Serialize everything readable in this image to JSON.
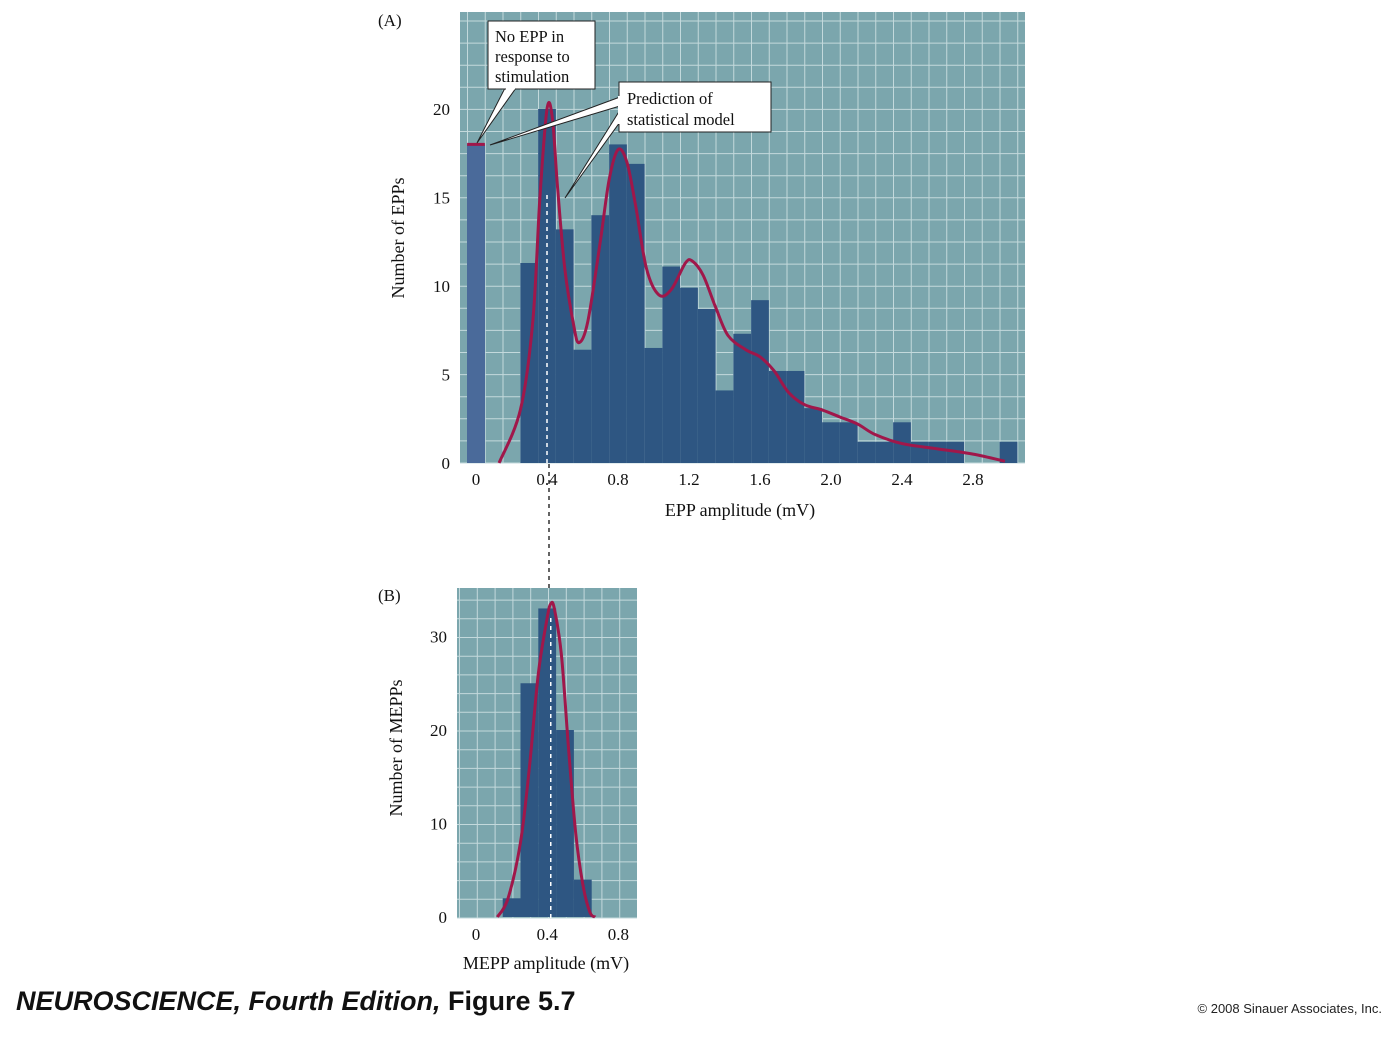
{
  "chart_data": [
    {
      "panel_label": "(A)",
      "type": "bar",
      "xlabel": "EPP amplitude (mV)",
      "ylabel": "Number of  EPPs",
      "xlim": [
        -0.1,
        3.05
      ],
      "ylim": [
        0,
        25.5
      ],
      "x_ticks": [
        "0",
        "0.4",
        "0.8",
        "1.2",
        "1.6",
        "2.0",
        "2.4",
        "2.8"
      ],
      "x_tick_values": [
        0,
        0.4,
        0.8,
        1.2,
        1.6,
        2.0,
        2.4,
        2.8
      ],
      "y_ticks": [
        "0",
        "5",
        "10",
        "15",
        "20"
      ],
      "y_tick_values": [
        0,
        5,
        10,
        15,
        20
      ],
      "bin_width": 0.1,
      "failures_bar": {
        "x": 0,
        "value": 18
      },
      "bars": [
        {
          "x": 0.3,
          "value": 11.3
        },
        {
          "x": 0.4,
          "value": 20
        },
        {
          "x": 0.5,
          "value": 13.2
        },
        {
          "x": 0.6,
          "value": 6.4
        },
        {
          "x": 0.7,
          "value": 14
        },
        {
          "x": 0.8,
          "value": 18
        },
        {
          "x": 0.9,
          "value": 16.9
        },
        {
          "x": 1.0,
          "value": 6.5
        },
        {
          "x": 1.1,
          "value": 11.1
        },
        {
          "x": 1.2,
          "value": 9.9
        },
        {
          "x": 1.3,
          "value": 8.7
        },
        {
          "x": 1.4,
          "value": 4.1
        },
        {
          "x": 1.5,
          "value": 7.3
        },
        {
          "x": 1.6,
          "value": 9.2
        },
        {
          "x": 1.7,
          "value": 5.2
        },
        {
          "x": 1.8,
          "value": 5.2
        },
        {
          "x": 1.9,
          "value": 3.1
        },
        {
          "x": 2.0,
          "value": 2.3
        },
        {
          "x": 2.1,
          "value": 2.3
        },
        {
          "x": 2.2,
          "value": 1.2
        },
        {
          "x": 2.3,
          "value": 1.2
        },
        {
          "x": 2.4,
          "value": 2.3
        },
        {
          "x": 2.5,
          "value": 1.2
        },
        {
          "x": 2.6,
          "value": 1.2
        },
        {
          "x": 2.7,
          "value": 1.2
        },
        {
          "x": 3.0,
          "value": 1.2
        }
      ],
      "model_curve": [
        [
          0.13,
          0
        ],
        [
          0.25,
          3
        ],
        [
          0.32,
          8
        ],
        [
          0.36,
          15
        ],
        [
          0.4,
          20
        ],
        [
          0.43,
          19.5
        ],
        [
          0.46,
          15.5
        ],
        [
          0.5,
          11
        ],
        [
          0.55,
          7.8
        ],
        [
          0.58,
          6.8
        ],
        [
          0.63,
          8
        ],
        [
          0.7,
          12.5
        ],
        [
          0.75,
          16
        ],
        [
          0.8,
          17.7
        ],
        [
          0.85,
          17
        ],
        [
          0.9,
          14.5
        ],
        [
          0.96,
          11
        ],
        [
          1.03,
          9.5
        ],
        [
          1.1,
          9.8
        ],
        [
          1.18,
          11.3
        ],
        [
          1.22,
          11.4
        ],
        [
          1.28,
          10.6
        ],
        [
          1.35,
          8.8
        ],
        [
          1.42,
          7.2
        ],
        [
          1.52,
          6.4
        ],
        [
          1.6,
          6
        ],
        [
          1.68,
          5.2
        ],
        [
          1.76,
          4
        ],
        [
          1.85,
          3.3
        ],
        [
          1.95,
          3
        ],
        [
          2.05,
          2.6
        ],
        [
          2.15,
          2.2
        ],
        [
          2.25,
          1.6
        ],
        [
          2.4,
          1.1
        ],
        [
          2.6,
          0.8
        ],
        [
          2.8,
          0.5
        ],
        [
          2.98,
          0.1
        ]
      ],
      "failure_curve": [
        [
          -0.05,
          18
        ],
        [
          0.05,
          18
        ]
      ],
      "annotations": {
        "failures": [
          "No EPP in",
          "response to",
          "stimulation"
        ],
        "model": [
          "Prediction of",
          "statistical model"
        ]
      },
      "dashed_line_x": 0.4
    },
    {
      "panel_label": "(B)",
      "type": "bar",
      "xlabel": "MEPP amplitude (mV)",
      "ylabel": "Number of MEPPs",
      "xlim": [
        -0.1,
        0.95
      ],
      "ylim": [
        0,
        35
      ],
      "x_ticks": [
        "0",
        "0.4",
        "0.8"
      ],
      "x_tick_values": [
        0,
        0.4,
        0.8
      ],
      "y_ticks": [
        "0",
        "10",
        "20",
        "30"
      ],
      "y_tick_values": [
        0,
        10,
        20,
        30
      ],
      "bin_width": 0.1,
      "bars": [
        {
          "x": 0.2,
          "value": 2
        },
        {
          "x": 0.3,
          "value": 25
        },
        {
          "x": 0.4,
          "value": 33
        },
        {
          "x": 0.5,
          "value": 20
        },
        {
          "x": 0.6,
          "value": 4
        }
      ],
      "model_curve": [
        [
          0.12,
          0
        ],
        [
          0.18,
          2
        ],
        [
          0.25,
          8
        ],
        [
          0.3,
          16
        ],
        [
          0.35,
          26
        ],
        [
          0.4,
          32
        ],
        [
          0.42,
          33.5
        ],
        [
          0.44,
          33
        ],
        [
          0.48,
          28
        ],
        [
          0.52,
          18
        ],
        [
          0.56,
          9
        ],
        [
          0.6,
          3.5
        ],
        [
          0.64,
          0.5
        ],
        [
          0.67,
          0
        ]
      ],
      "dashed_line_x": 0.42
    }
  ],
  "footer": {
    "book": "NEUROSCIENCE, Fourth Edition,",
    "figure": "Figure 5.7",
    "copyright": "© 2008 Sinauer Associates, Inc."
  },
  "colors": {
    "plot_bg": "#7ba6ad",
    "grid": "#c3d9dc",
    "bar": "#2e5682",
    "failure_bar": "#4a6a9a",
    "curve": "#a0174a",
    "text": "#111111"
  }
}
